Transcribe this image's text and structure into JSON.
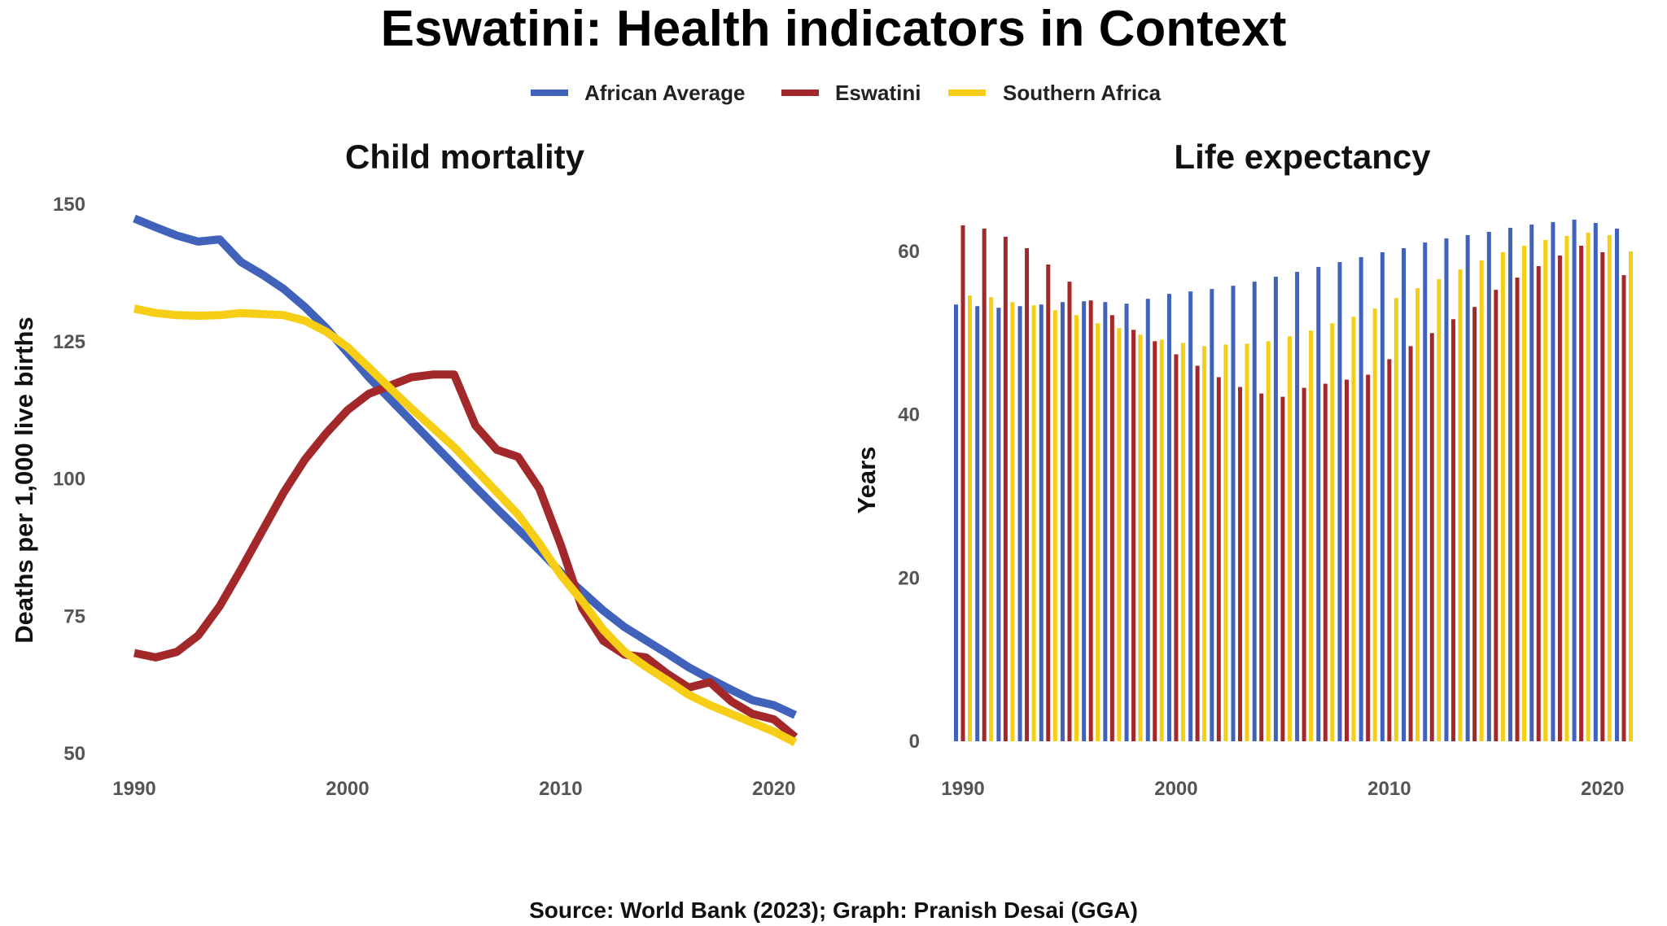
{
  "title": "Eswatini: Health indicators in Context",
  "source": "Source: World Bank (2023); Graph: Pranish Desai (GGA)",
  "colors": {
    "African Average": "#4062BB",
    "Eswatini": "#A3282A",
    "Southern Africa": "#F6CE15"
  },
  "legend": [
    "African Average",
    "Eswatini",
    "Southern Africa"
  ],
  "chart_data": [
    {
      "type": "line",
      "title": "Child mortality",
      "xlabel": "",
      "ylabel": "Deaths per 1,000 live births",
      "xlim": [
        1990,
        2021
      ],
      "ylim": [
        50,
        150
      ],
      "xticks": [
        1990,
        2000,
        2010,
        2020
      ],
      "yticks": [
        50,
        75,
        100,
        125,
        150
      ],
      "grid": false,
      "legend": "top",
      "x": [
        1990,
        1991,
        1992,
        1993,
        1994,
        1995,
        1996,
        1997,
        1998,
        1999,
        2000,
        2001,
        2002,
        2003,
        2004,
        2005,
        2006,
        2007,
        2008,
        2009,
        2010,
        2011,
        2012,
        2013,
        2014,
        2015,
        2016,
        2017,
        2018,
        2019,
        2020,
        2021
      ],
      "series": [
        {
          "name": "African Average",
          "values": [
            147.4,
            145.8,
            144.3,
            143.2,
            143.6,
            139.5,
            137.2,
            134.6,
            131.3,
            127.5,
            123,
            118.5,
            114.5,
            110.5,
            106.5,
            102.5,
            98.5,
            94.6,
            90.8,
            87,
            83,
            79.5,
            76,
            73,
            70.6,
            68.2,
            65.7,
            63.6,
            61.6,
            59.7,
            58.8,
            57
          ]
        },
        {
          "name": "Eswatini",
          "values": [
            68.3,
            67.5,
            68.5,
            71.5,
            76.8,
            83.5,
            90.5,
            97.5,
            103.5,
            108.3,
            112.5,
            115.5,
            117,
            118.5,
            119,
            119,
            109.7,
            105.3,
            104,
            98.2,
            88,
            76.5,
            70.5,
            68,
            67.5,
            64.5,
            62,
            63,
            59.5,
            57.2,
            56.2,
            53
          ]
        },
        {
          "name": "Southern Africa",
          "values": [
            131,
            130.2,
            129.8,
            129.7,
            129.8,
            130.2,
            130,
            129.8,
            128.8,
            126.8,
            124,
            120.3,
            116.5,
            112.8,
            109.3,
            105.8,
            101.7,
            97.6,
            93.5,
            88.2,
            82.5,
            77.8,
            72.5,
            68.5,
            65.8,
            63.3,
            60.7,
            58.8,
            57.2,
            55.6,
            54,
            52
          ]
        }
      ]
    },
    {
      "type": "bar",
      "title": "Life expectancy",
      "xlabel": "",
      "ylabel": "Years",
      "xlim": [
        1990,
        2021
      ],
      "ylim": [
        0,
        65
      ],
      "xticks": [
        1990,
        2000,
        2010,
        2020
      ],
      "yticks": [
        0,
        20,
        40,
        60
      ],
      "grid": false,
      "legend": "top",
      "x": [
        1990,
        1991,
        1992,
        1993,
        1994,
        1995,
        1996,
        1997,
        1998,
        1999,
        2000,
        2001,
        2002,
        2003,
        2004,
        2005,
        2006,
        2007,
        2008,
        2009,
        2010,
        2011,
        2012,
        2013,
        2014,
        2015,
        2016,
        2017,
        2018,
        2019,
        2020,
        2021
      ],
      "series": [
        {
          "name": "African Average",
          "values": [
            53.5,
            53.3,
            53.1,
            53.3,
            53.5,
            53.8,
            53.9,
            53.8,
            53.6,
            54.2,
            54.8,
            55.1,
            55.4,
            55.8,
            56.3,
            56.9,
            57.5,
            58.1,
            58.7,
            59.3,
            59.9,
            60.4,
            61.1,
            61.6,
            62.0,
            62.4,
            62.9,
            63.3,
            63.6,
            63.9,
            63.5,
            62.8
          ]
        },
        {
          "name": "Eswatini",
          "values": [
            63.2,
            62.8,
            61.8,
            60.4,
            58.4,
            56.3,
            54,
            52.2,
            50.4,
            49,
            47.4,
            46,
            44.6,
            43.4,
            42.6,
            42.2,
            43.3,
            43.8,
            44.3,
            44.9,
            46.8,
            48.4,
            50,
            51.7,
            53.2,
            55.3,
            56.8,
            58.2,
            59.5,
            60.7,
            59.9,
            57.1
          ]
        },
        {
          "name": "Southern Africa",
          "values": [
            54.6,
            54.4,
            53.8,
            53.4,
            52.8,
            52.2,
            51.2,
            50.6,
            49.8,
            49.2,
            48.8,
            48.4,
            48.6,
            48.7,
            49.0,
            49.6,
            50.3,
            51.2,
            52.0,
            53.0,
            54.3,
            55.5,
            56.6,
            57.8,
            58.9,
            59.9,
            60.7,
            61.4,
            61.9,
            62.3,
            62.0,
            60.0
          ]
        }
      ]
    }
  ]
}
